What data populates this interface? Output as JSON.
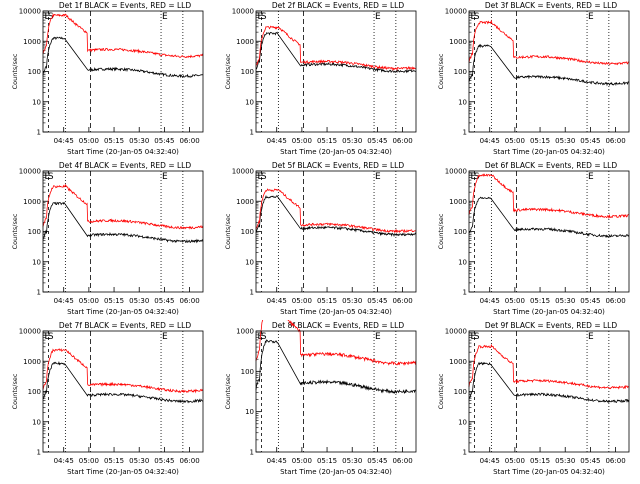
{
  "chart_data": [
    {
      "type": "line",
      "title": "Det 1f BLACK = Events, RED = LLD",
      "xlabel": "Start Time (20-Jan-05 04:32:40)",
      "ylabel": "Counts/sec",
      "x_ticks": [
        "04:45",
        "05:00",
        "05:15",
        "05:30",
        "05:45",
        "06:00"
      ],
      "y_ticks": [
        "1",
        "10",
        "100",
        "1000",
        "10000"
      ],
      "y_scale": "log",
      "ylim": [
        1,
        10000
      ],
      "xlim": [
        "04:32:40",
        "06:08"
      ],
      "markers": [
        "E",
        "S",
        "E"
      ],
      "series": [
        {
          "name": "Events",
          "color": "#000000",
          "plateau": 90
        },
        {
          "name": "LLD",
          "color": "#ff0000",
          "plateau": 400
        }
      ]
    },
    {
      "type": "line",
      "title": "Det 2f BLACK = Events, RED = LLD",
      "xlabel": "Start Time (20-Jan-05 04:32:40)",
      "ylabel": "Counts/sec",
      "x_ticks": [
        "04:45",
        "05:00",
        "05:15",
        "05:30",
        "05:45",
        "06:00"
      ],
      "y_ticks": [
        "1",
        "10",
        "100",
        "1000",
        "10000"
      ],
      "y_scale": "log",
      "ylim": [
        1,
        10000
      ],
      "xlim": [
        "04:32:40",
        "06:08"
      ],
      "markers": [
        "E",
        "S",
        "E"
      ],
      "series": [
        {
          "name": "Events",
          "color": "#000000",
          "plateau": 130
        },
        {
          "name": "LLD",
          "color": "#ff0000",
          "plateau": 160
        }
      ]
    },
    {
      "type": "line",
      "title": "Det 3f BLACK = Events, RED = LLD",
      "xlabel": "Start Time (20-Jan-05 04:32:40)",
      "ylabel": "Counts/sec",
      "x_ticks": [
        "04:45",
        "05:00",
        "05:15",
        "05:30",
        "05:45",
        "06:00"
      ],
      "y_ticks": [
        "1",
        "10",
        "100",
        "1000",
        "10000"
      ],
      "y_scale": "log",
      "ylim": [
        1,
        10000
      ],
      "xlim": [
        "04:32:40",
        "06:08"
      ],
      "markers": [
        "E",
        "S",
        "E"
      ],
      "series": [
        {
          "name": "Events",
          "color": "#000000",
          "plateau": 50
        },
        {
          "name": "LLD",
          "color": "#ff0000",
          "plateau": 230
        }
      ]
    },
    {
      "type": "line",
      "title": "Det 4f BLACK = Events, RED = LLD",
      "xlabel": "Start Time (20-Jan-05 04:32:40)",
      "ylabel": "Counts/sec",
      "x_ticks": [
        "04:45",
        "05:00",
        "05:15",
        "05:30",
        "05:45",
        "06:00"
      ],
      "y_ticks": [
        "1",
        "10",
        "100",
        "1000",
        "10000"
      ],
      "y_scale": "log",
      "ylim": [
        1,
        10000
      ],
      "xlim": [
        "04:32:40",
        "06:08"
      ],
      "markers": [
        "E",
        "S",
        "E"
      ],
      "series": [
        {
          "name": "Events",
          "color": "#000000",
          "plateau": 60
        },
        {
          "name": "LLD",
          "color": "#ff0000",
          "plateau": 170
        }
      ]
    },
    {
      "type": "line",
      "title": "Det 5f BLACK = Events, RED = LLD",
      "xlabel": "Start Time (20-Jan-05 04:32:40)",
      "ylabel": "Counts/sec",
      "x_ticks": [
        "04:45",
        "05:00",
        "05:15",
        "05:30",
        "05:45",
        "06:00"
      ],
      "y_scale": "log",
      "y_ticks": [
        "1",
        "10",
        "100",
        "1000",
        "10000"
      ],
      "ylim": [
        1,
        10000
      ],
      "xlim": [
        "04:32:40",
        "06:08"
      ],
      "markers": [
        "E",
        "S",
        "E"
      ],
      "series": [
        {
          "name": "Events",
          "color": "#000000",
          "plateau": 100
        },
        {
          "name": "LLD",
          "color": "#ff0000",
          "plateau": 130
        }
      ]
    },
    {
      "type": "line",
      "title": "Det 6f BLACK = Events, RED = LLD",
      "xlabel": "Start Time (20-Jan-05 04:32:40)",
      "ylabel": "Counts/sec",
      "x_ticks": [
        "04:45",
        "05:00",
        "05:15",
        "05:30",
        "05:45",
        "06:00"
      ],
      "y_ticks": [
        "1",
        "10",
        "100",
        "1000",
        "10000"
      ],
      "y_scale": "log",
      "ylim": [
        1,
        10000
      ],
      "xlim": [
        "04:32:40",
        "06:08"
      ],
      "markers": [
        "E",
        "S",
        "E"
      ],
      "series": [
        {
          "name": "Events",
          "color": "#000000",
          "plateau": 90
        },
        {
          "name": "LLD",
          "color": "#ff0000",
          "plateau": 400
        }
      ]
    },
    {
      "type": "line",
      "title": "Det 7f BLACK = Events, RED = LLD",
      "xlabel": "Start Time (20-Jan-05 04:32:40)",
      "ylabel": "Counts/sec",
      "x_ticks": [
        "04:45",
        "05:00",
        "05:15",
        "05:30",
        "05:45",
        "06:00"
      ],
      "y_ticks": [
        "1",
        "10",
        "100",
        "1000",
        "10000"
      ],
      "y_scale": "log",
      "ylim": [
        1,
        10000
      ],
      "xlim": [
        "04:32:40",
        "06:08"
      ],
      "markers": [
        "E",
        "S",
        "E"
      ],
      "series": [
        {
          "name": "Events",
          "color": "#000000",
          "plateau": 60
        },
        {
          "name": "LLD",
          "color": "#ff0000",
          "plateau": 130
        }
      ]
    },
    {
      "type": "line",
      "title": "Det 8f BLACK = Events, RED = LLD",
      "xlabel": "Start Time (20-Jan-05 04:32:40)",
      "ylabel": "Counts/sec",
      "x_ticks": [
        "04:45",
        "05:00",
        "05:15",
        "05:30",
        "05:45",
        "06:00"
      ],
      "y_ticks": [
        "1",
        "10",
        "100",
        "1000"
      ],
      "y_scale": "log",
      "ylim": [
        1,
        1000
      ],
      "xlim": [
        "04:32:40",
        "06:08"
      ],
      "markers": [
        "E",
        "S",
        "E"
      ],
      "series": [
        {
          "name": "Events",
          "color": "#000000",
          "plateau": 40
        },
        {
          "name": "LLD",
          "color": "#ff0000",
          "plateau": 200
        }
      ]
    },
    {
      "type": "line",
      "title": "Det 9f BLACK = Events, RED = LLD",
      "xlabel": "Start Time (20-Jan-05 04:32:40)",
      "ylabel": "Counts/sec",
      "x_ticks": [
        "04:45",
        "05:00",
        "05:15",
        "05:30",
        "05:45",
        "06:00"
      ],
      "y_ticks": [
        "1",
        "10",
        "100",
        "1000",
        "10000"
      ],
      "y_scale": "log",
      "ylim": [
        1,
        10000
      ],
      "xlim": [
        "04:32:40",
        "06:08"
      ],
      "markers": [
        "E",
        "S",
        "E"
      ],
      "series": [
        {
          "name": "Events",
          "color": "#000000",
          "plateau": 60
        },
        {
          "name": "LLD",
          "color": "#ff0000",
          "plateau": 170
        }
      ]
    }
  ]
}
